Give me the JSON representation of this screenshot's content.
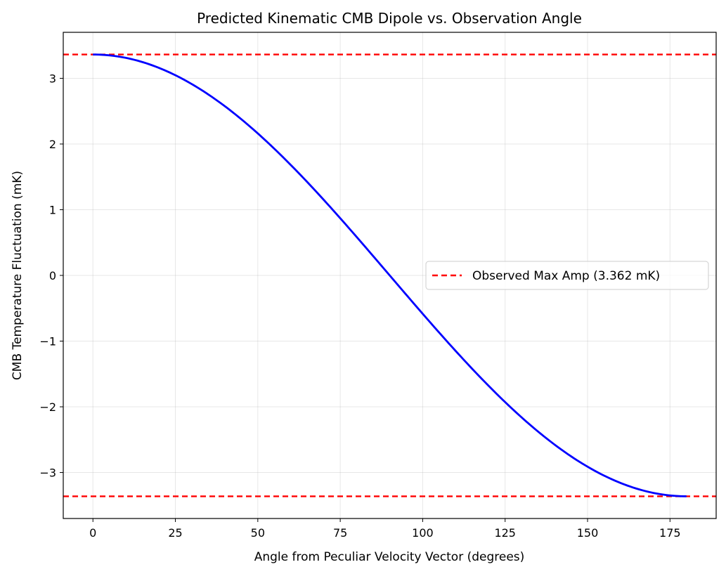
{
  "chart_data": {
    "type": "line",
    "title": "Predicted Kinematic CMB Dipole vs. Observation Angle",
    "xlabel": "Angle from Peculiar Velocity Vector (degrees)",
    "ylabel": "CMB Temperature Fluctuation (mK)",
    "xlim": [
      -9,
      189
    ],
    "ylim": [
      -3.7,
      3.7
    ],
    "xticks": [
      0,
      25,
      50,
      75,
      100,
      125,
      150,
      175
    ],
    "yticks": [
      -3,
      -2,
      -1,
      0,
      1,
      2,
      3
    ],
    "ytick_labels": [
      "−3",
      "−2",
      "−1",
      "0",
      "1",
      "2",
      "3"
    ],
    "grid": true,
    "legend_placement": "center-right",
    "series": [
      {
        "function": "3.362 * cos(angle)",
        "amplitude": 3.362,
        "x_range": [
          0,
          180
        ],
        "color": "#0000ff",
        "style": "solid"
      }
    ],
    "hlines": [
      {
        "name": "Observed Max Amp (3.362 mK)",
        "y": 3.362,
        "color": "#ff0000",
        "style": "dashed"
      },
      {
        "y": -3.362,
        "color": "#ff0000",
        "style": "dashed"
      }
    ]
  }
}
